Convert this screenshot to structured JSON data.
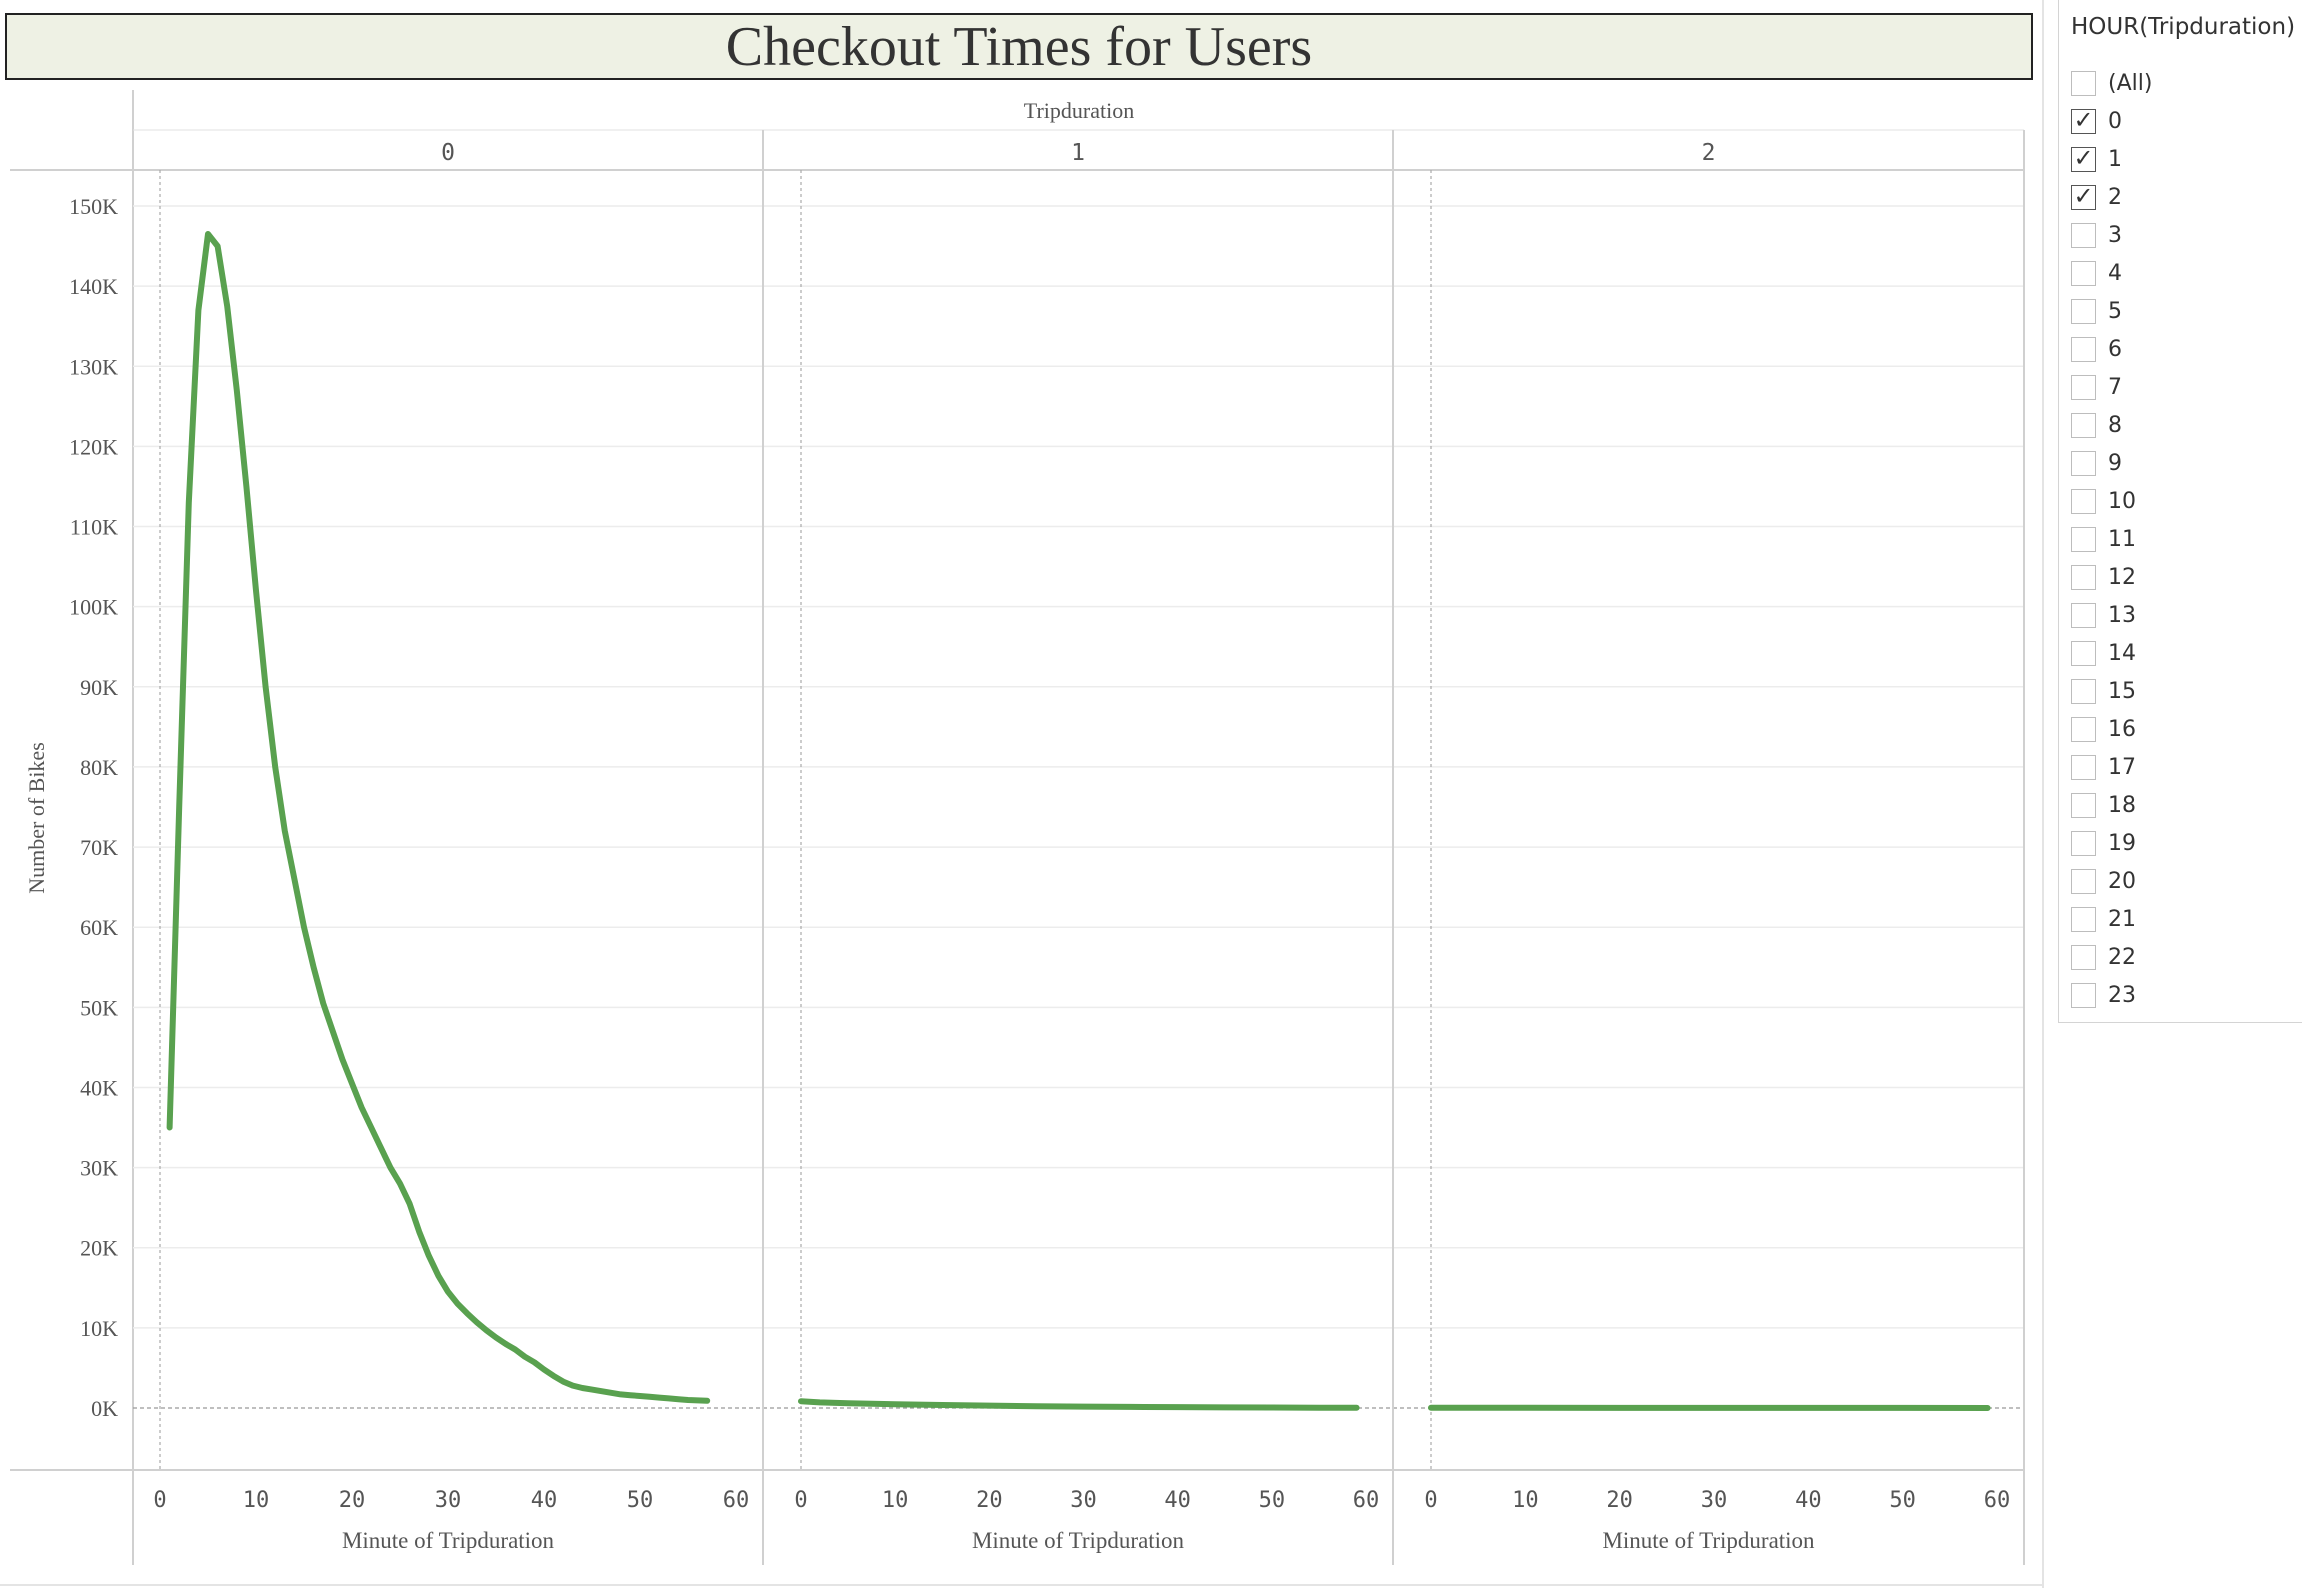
{
  "title": "Checkout Times for Users",
  "filter": {
    "title": "HOUR(Tripduration)",
    "items": [
      {
        "label": "(All)",
        "checked": false
      },
      {
        "label": "0",
        "checked": true
      },
      {
        "label": "1",
        "checked": true
      },
      {
        "label": "2",
        "checked": true
      },
      {
        "label": "3",
        "checked": false
      },
      {
        "label": "4",
        "checked": false
      },
      {
        "label": "5",
        "checked": false
      },
      {
        "label": "6",
        "checked": false
      },
      {
        "label": "7",
        "checked": false
      },
      {
        "label": "8",
        "checked": false
      },
      {
        "label": "9",
        "checked": false
      },
      {
        "label": "10",
        "checked": false
      },
      {
        "label": "11",
        "checked": false
      },
      {
        "label": "12",
        "checked": false
      },
      {
        "label": "13",
        "checked": false
      },
      {
        "label": "14",
        "checked": false
      },
      {
        "label": "15",
        "checked": false
      },
      {
        "label": "16",
        "checked": false
      },
      {
        "label": "17",
        "checked": false
      },
      {
        "label": "18",
        "checked": false
      },
      {
        "label": "19",
        "checked": false
      },
      {
        "label": "20",
        "checked": false
      },
      {
        "label": "21",
        "checked": false
      },
      {
        "label": "22",
        "checked": false
      },
      {
        "label": "23",
        "checked": false
      }
    ]
  },
  "chart_data": {
    "type": "line",
    "title": "Checkout Times for Users",
    "column_header": "Tripduration",
    "xlabel": "Minute of Tripduration",
    "ylabel": "Number of Bikes",
    "ylim": [
      0,
      150000
    ],
    "y_ticks": [
      "0K",
      "10K",
      "20K",
      "30K",
      "40K",
      "50K",
      "60K",
      "70K",
      "80K",
      "90K",
      "100K",
      "110K",
      "120K",
      "130K",
      "140K",
      "150K"
    ],
    "xlim": [
      0,
      60
    ],
    "x_ticks": [
      "0",
      "10",
      "20",
      "30",
      "40",
      "50",
      "60"
    ],
    "line_color": "#59a14f",
    "grid": true,
    "panes": [
      {
        "header": "0",
        "points": [
          [
            1,
            35000
          ],
          [
            2,
            75000
          ],
          [
            3,
            113000
          ],
          [
            4,
            137000
          ],
          [
            5,
            146500
          ],
          [
            6,
            145000
          ],
          [
            7,
            137500
          ],
          [
            8,
            127000
          ],
          [
            9,
            115000
          ],
          [
            10,
            102000
          ],
          [
            11,
            90000
          ],
          [
            12,
            80000
          ],
          [
            13,
            72000
          ],
          [
            14,
            66000
          ],
          [
            15,
            60000
          ],
          [
            16,
            55000
          ],
          [
            17,
            50500
          ],
          [
            18,
            47000
          ],
          [
            19,
            43500
          ],
          [
            20,
            40500
          ],
          [
            21,
            37500
          ],
          [
            22,
            35000
          ],
          [
            23,
            32500
          ],
          [
            24,
            30000
          ],
          [
            25,
            28000
          ],
          [
            26,
            25500
          ],
          [
            27,
            22000
          ],
          [
            28,
            19000
          ],
          [
            29,
            16500
          ],
          [
            30,
            14500
          ],
          [
            31,
            13000
          ],
          [
            32,
            11800
          ],
          [
            33,
            10700
          ],
          [
            34,
            9700
          ],
          [
            35,
            8800
          ],
          [
            36,
            8000
          ],
          [
            37,
            7300
          ],
          [
            38,
            6400
          ],
          [
            39,
            5700
          ],
          [
            40,
            4800
          ],
          [
            41,
            4000
          ],
          [
            42,
            3300
          ],
          [
            43,
            2800
          ],
          [
            44,
            2500
          ],
          [
            45,
            2300
          ],
          [
            46,
            2100
          ],
          [
            47,
            1900
          ],
          [
            48,
            1700
          ],
          [
            49,
            1600
          ],
          [
            50,
            1500
          ],
          [
            51,
            1400
          ],
          [
            52,
            1300
          ],
          [
            53,
            1200
          ],
          [
            54,
            1100
          ],
          [
            55,
            1000
          ],
          [
            56,
            950
          ],
          [
            57,
            900
          ]
        ]
      },
      {
        "header": "1",
        "points": [
          [
            0,
            850
          ],
          [
            2,
            700
          ],
          [
            5,
            600
          ],
          [
            10,
            480
          ],
          [
            15,
            380
          ],
          [
            20,
            300
          ],
          [
            25,
            230
          ],
          [
            30,
            180
          ],
          [
            35,
            140
          ],
          [
            40,
            110
          ],
          [
            45,
            80
          ],
          [
            50,
            60
          ],
          [
            55,
            40
          ],
          [
            59,
            30
          ]
        ]
      },
      {
        "header": "2",
        "points": [
          [
            0,
            30
          ],
          [
            5,
            25
          ],
          [
            10,
            22
          ],
          [
            20,
            18
          ],
          [
            30,
            14
          ],
          [
            40,
            10
          ],
          [
            50,
            7
          ],
          [
            59,
            5
          ]
        ]
      }
    ]
  }
}
